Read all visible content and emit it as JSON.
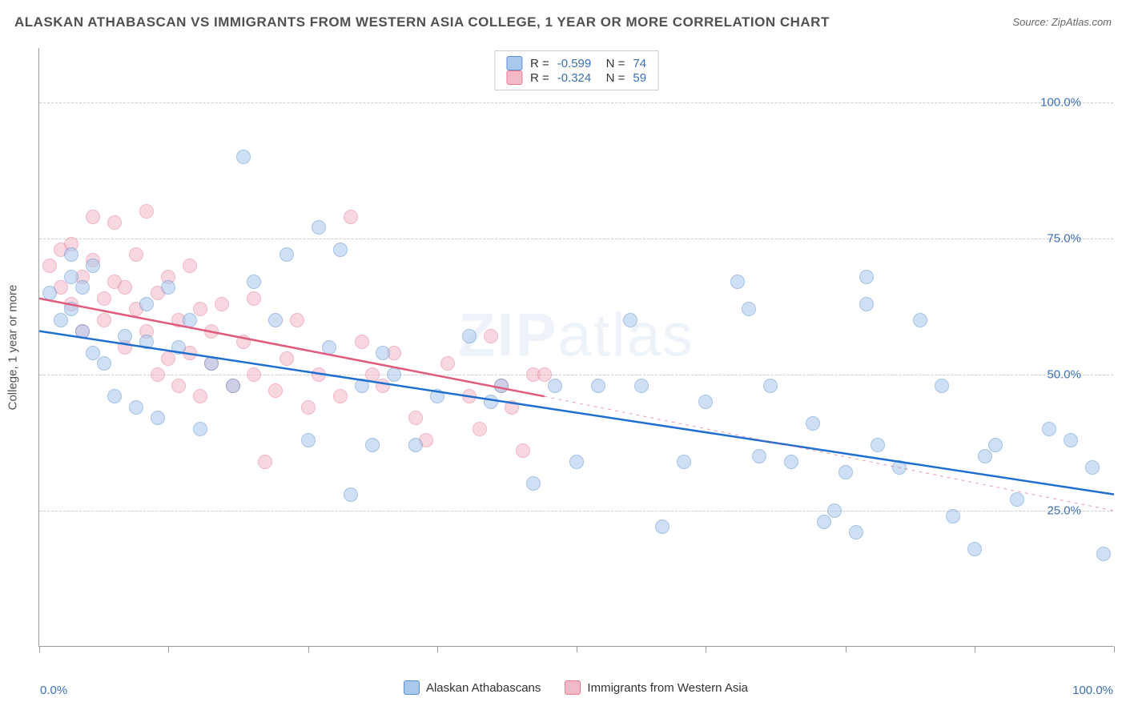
{
  "header": {
    "title": "ALASKAN ATHABASCAN VS IMMIGRANTS FROM WESTERN ASIA COLLEGE, 1 YEAR OR MORE CORRELATION CHART",
    "source": "Source: ZipAtlas.com"
  },
  "watermark": {
    "bold": "ZIP",
    "light": "atlas"
  },
  "chart": {
    "type": "scatter",
    "ylabel": "College, 1 year or more",
    "background_color": "#ffffff",
    "grid_color": "#cccccc",
    "axis_color": "#9a9a9a",
    "xlim": [
      0,
      100
    ],
    "ylim": [
      0,
      110
    ],
    "xtick_positions": [
      0,
      12,
      25,
      37,
      50,
      62,
      75,
      87,
      100
    ],
    "xtick_labels": {
      "0": "0.0%",
      "100": "100.0%"
    },
    "ytick_positions": [
      25,
      50,
      75,
      100
    ],
    "ytick_labels": {
      "25": "25.0%",
      "50": "50.0%",
      "75": "75.0%",
      "100": "100.0%"
    },
    "point_radius": 9,
    "point_opacity": 0.55,
    "series": [
      {
        "id": "series-a",
        "name": "Alaskan Athabascans",
        "fill_color": "#a9c8ec",
        "stroke_color": "#5a8fd0",
        "line_color": "#1f6fd0",
        "line_width": 2.5,
        "R": "-0.599",
        "N": "74",
        "trend": {
          "x1": 0,
          "y1": 58,
          "x2": 100,
          "y2": 28,
          "dash_after_x": 100
        },
        "points": [
          [
            1,
            65
          ],
          [
            2,
            60
          ],
          [
            3,
            68
          ],
          [
            3,
            72
          ],
          [
            3,
            62
          ],
          [
            4,
            58
          ],
          [
            4,
            66
          ],
          [
            5,
            54
          ],
          [
            5,
            70
          ],
          [
            6,
            52
          ],
          [
            7,
            46
          ],
          [
            8,
            57
          ],
          [
            9,
            44
          ],
          [
            10,
            63
          ],
          [
            10,
            56
          ],
          [
            11,
            42
          ],
          [
            12,
            66
          ],
          [
            13,
            55
          ],
          [
            14,
            60
          ],
          [
            15,
            40
          ],
          [
            16,
            52
          ],
          [
            18,
            48
          ],
          [
            19,
            90
          ],
          [
            20,
            67
          ],
          [
            22,
            60
          ],
          [
            23,
            72
          ],
          [
            25,
            38
          ],
          [
            26,
            77
          ],
          [
            27,
            55
          ],
          [
            28,
            73
          ],
          [
            29,
            28
          ],
          [
            30,
            48
          ],
          [
            31,
            37
          ],
          [
            32,
            54
          ],
          [
            33,
            50
          ],
          [
            35,
            37
          ],
          [
            37,
            46
          ],
          [
            40,
            57
          ],
          [
            42,
            45
          ],
          [
            43,
            48
          ],
          [
            46,
            30
          ],
          [
            48,
            48
          ],
          [
            50,
            34
          ],
          [
            52,
            48
          ],
          [
            55,
            60
          ],
          [
            56,
            48
          ],
          [
            58,
            22
          ],
          [
            60,
            34
          ],
          [
            62,
            45
          ],
          [
            65,
            67
          ],
          [
            66,
            62
          ],
          [
            67,
            35
          ],
          [
            68,
            48
          ],
          [
            70,
            34
          ],
          [
            72,
            41
          ],
          [
            73,
            23
          ],
          [
            74,
            25
          ],
          [
            75,
            32
          ],
          [
            76,
            21
          ],
          [
            77,
            68
          ],
          [
            77,
            63
          ],
          [
            78,
            37
          ],
          [
            80,
            33
          ],
          [
            82,
            60
          ],
          [
            84,
            48
          ],
          [
            85,
            24
          ],
          [
            87,
            18
          ],
          [
            88,
            35
          ],
          [
            89,
            37
          ],
          [
            91,
            27
          ],
          [
            94,
            40
          ],
          [
            96,
            38
          ],
          [
            98,
            33
          ],
          [
            99,
            17
          ]
        ]
      },
      {
        "id": "series-b",
        "name": "Immigrants from Western Asia",
        "fill_color": "#f4b9c7",
        "stroke_color": "#e77b94",
        "line_color": "#e05a7c",
        "line_width": 2.5,
        "R": "-0.324",
        "N": "59",
        "trend": {
          "x1": 0,
          "y1": 64,
          "x2": 47,
          "y2": 46,
          "dash_after_x": 47,
          "dash_x2": 100,
          "dash_y2": 25
        },
        "points": [
          [
            1,
            70
          ],
          [
            2,
            66
          ],
          [
            2,
            73
          ],
          [
            3,
            63
          ],
          [
            3,
            74
          ],
          [
            4,
            68
          ],
          [
            4,
            58
          ],
          [
            5,
            79
          ],
          [
            5,
            71
          ],
          [
            6,
            64
          ],
          [
            6,
            60
          ],
          [
            7,
            78
          ],
          [
            7,
            67
          ],
          [
            8,
            66
          ],
          [
            8,
            55
          ],
          [
            9,
            72
          ],
          [
            9,
            62
          ],
          [
            10,
            80
          ],
          [
            10,
            58
          ],
          [
            11,
            65
          ],
          [
            11,
            50
          ],
          [
            12,
            68
          ],
          [
            12,
            53
          ],
          [
            13,
            60
          ],
          [
            13,
            48
          ],
          [
            14,
            70
          ],
          [
            14,
            54
          ],
          [
            15,
            62
          ],
          [
            15,
            46
          ],
          [
            16,
            58
          ],
          [
            16,
            52
          ],
          [
            17,
            63
          ],
          [
            18,
            48
          ],
          [
            19,
            56
          ],
          [
            20,
            50
          ],
          [
            20,
            64
          ],
          [
            21,
            34
          ],
          [
            22,
            47
          ],
          [
            23,
            53
          ],
          [
            24,
            60
          ],
          [
            25,
            44
          ],
          [
            26,
            50
          ],
          [
            28,
            46
          ],
          [
            29,
            79
          ],
          [
            30,
            56
          ],
          [
            31,
            50
          ],
          [
            32,
            48
          ],
          [
            33,
            54
          ],
          [
            35,
            42
          ],
          [
            36,
            38
          ],
          [
            38,
            52
          ],
          [
            40,
            46
          ],
          [
            41,
            40
          ],
          [
            42,
            57
          ],
          [
            43,
            48
          ],
          [
            44,
            44
          ],
          [
            45,
            36
          ],
          [
            46,
            50
          ],
          [
            47,
            50
          ]
        ]
      }
    ]
  },
  "legend_bottom": [
    {
      "swatch_fill": "#a9c8ec",
      "swatch_stroke": "#5a8fd0",
      "label": "Alaskan Athabascans"
    },
    {
      "swatch_fill": "#f4b9c7",
      "swatch_stroke": "#e77b94",
      "label": "Immigrants from Western Asia"
    }
  ]
}
